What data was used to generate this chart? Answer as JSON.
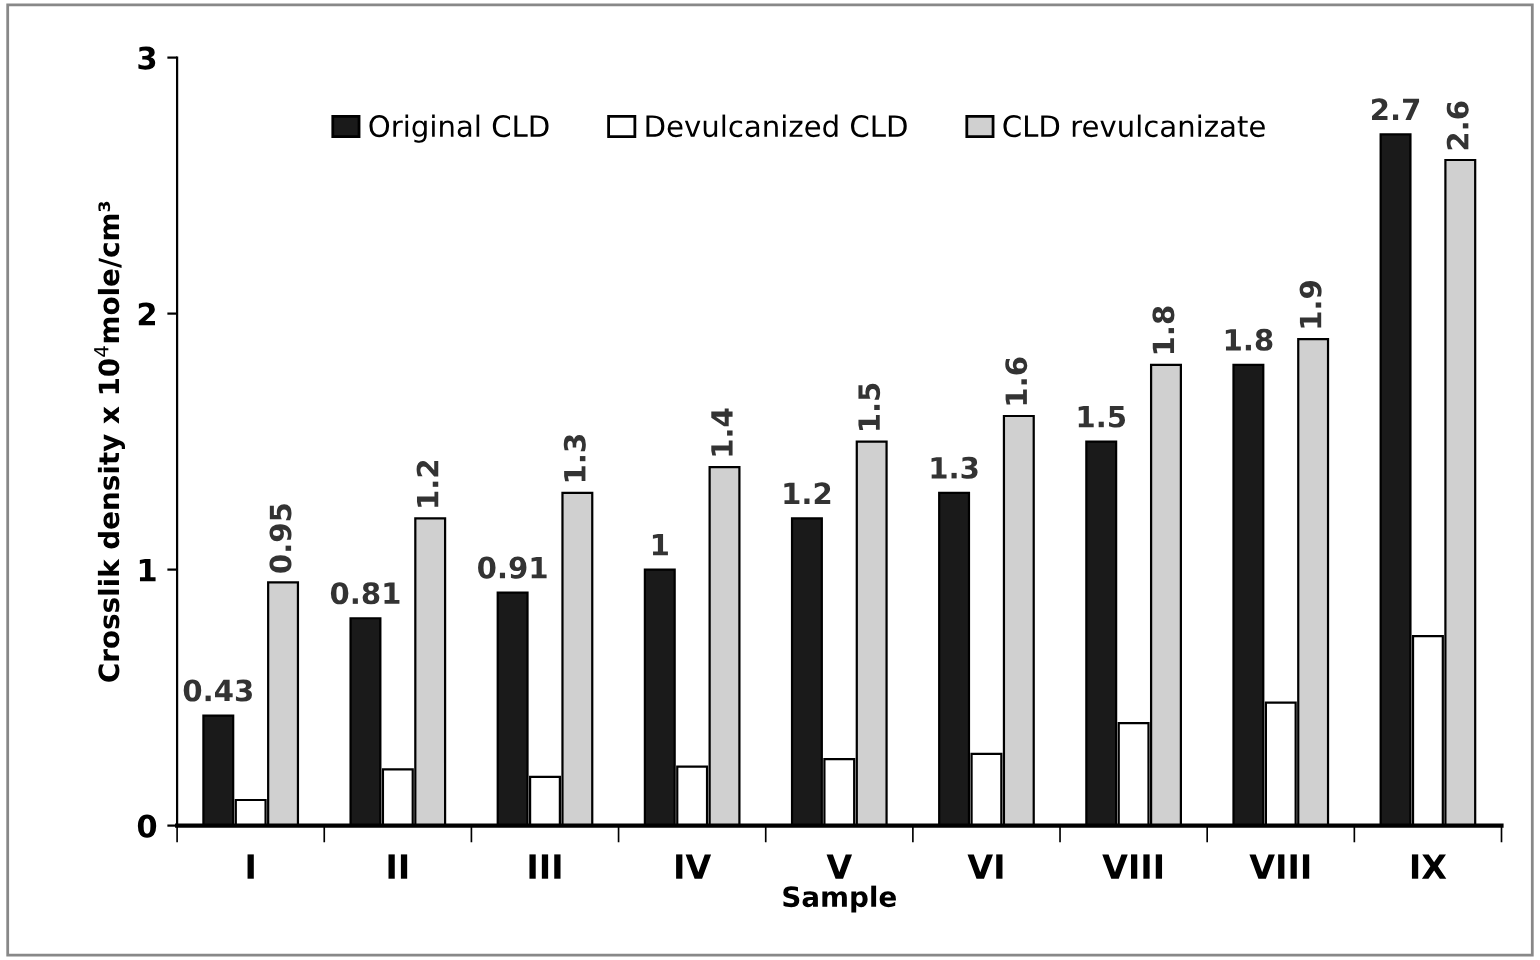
{
  "chart_data": {
    "type": "bar",
    "xlabel": "Sample",
    "ylabel": "Crosslik density x 10$^{4}$mole/cm³",
    "categories": [
      "I",
      "II",
      "III",
      "IV",
      "V",
      "VI",
      "VIII",
      "VIII",
      "IX"
    ],
    "series": [
      {
        "name": "Original CLD",
        "color": "#1a1a1a",
        "values": [
          0.43,
          0.81,
          0.91,
          1,
          1.2,
          1.3,
          1.5,
          1.8,
          2.7
        ],
        "value_labels": [
          "0.43",
          "0.81",
          "0.91",
          "1",
          "1.2",
          "1.3",
          "1.5",
          "1.8",
          "2.7"
        ]
      },
      {
        "name": "Devulcanized CLD",
        "color": "#ffffff",
        "values": [
          0.1,
          0.22,
          0.19,
          0.23,
          0.26,
          0.28,
          0.4,
          0.48,
          0.74
        ]
      },
      {
        "name": "CLD revulcanizate",
        "color": "#d0d0d0",
        "values": [
          0.95,
          1.2,
          1.3,
          1.4,
          1.5,
          1.6,
          1.8,
          1.9,
          2.6
        ],
        "value_labels": [
          "0.95",
          "1.2",
          "1.3",
          "1.4",
          "1.5",
          "1.6",
          "1.8",
          "1.9",
          "2.6"
        ]
      }
    ],
    "ylim": [
      0,
      3
    ],
    "yticks": [
      0,
      1,
      2,
      3
    ],
    "grid": false,
    "legend": "top"
  }
}
